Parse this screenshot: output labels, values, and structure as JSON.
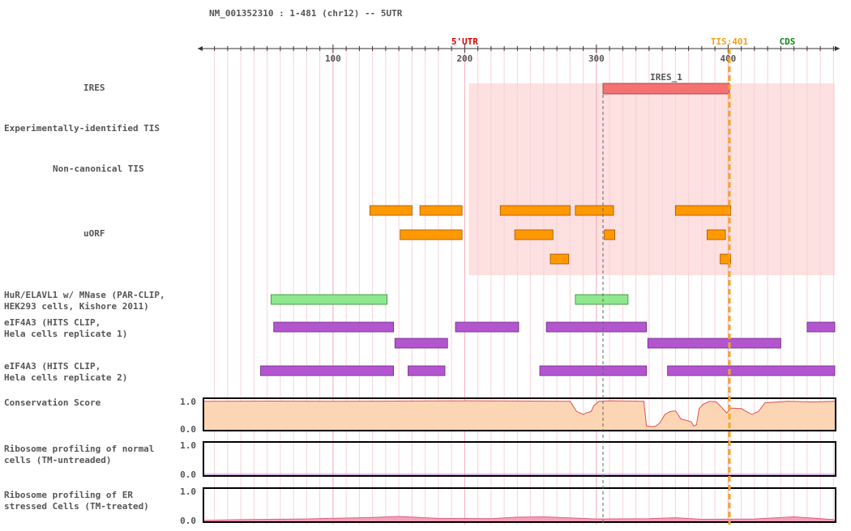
{
  "header": {
    "title": "NM_001352310 : 1-481 (chr12) -- 5UTR"
  },
  "axis": {
    "min": 1,
    "max": 481,
    "major_ticks": [
      100,
      200,
      300,
      400
    ],
    "minor_step": 10,
    "region_labels": [
      {
        "text": "5'UTR",
        "pos": 200,
        "color": "#dd0000"
      },
      {
        "text": "TIS:401",
        "pos": 401,
        "color": "#f0a020"
      },
      {
        "text": "CDS",
        "pos": 445,
        "color": "#118811"
      }
    ]
  },
  "tis_marker": {
    "pos": 401,
    "color": "#f5a623"
  },
  "dashed_marker": {
    "pos": 305
  },
  "highlight_region": {
    "start": 203,
    "end": 481,
    "color": "#fde0e0"
  },
  "tracks": {
    "ires": {
      "label": "IRES",
      "features": [
        {
          "name": "IRES_1",
          "start": 305,
          "end": 401
        }
      ],
      "color": "#f47272"
    },
    "exp_tis": {
      "label": "Experimentally-identified TIS"
    },
    "noncanonical_tis": {
      "label": "Non-canonical TIS"
    },
    "uorf": {
      "label": "uORF",
      "color": "#ff9900",
      "features": [
        {
          "start": 128,
          "end": 160,
          "row": 0
        },
        {
          "start": 166,
          "end": 198,
          "row": 0
        },
        {
          "start": 227,
          "end": 280,
          "row": 0
        },
        {
          "start": 284,
          "end": 313,
          "row": 0
        },
        {
          "start": 360,
          "end": 402,
          "row": 0
        },
        {
          "start": 151,
          "end": 198,
          "row": 1
        },
        {
          "start": 238,
          "end": 267,
          "row": 1
        },
        {
          "start": 306,
          "end": 314,
          "row": 1
        },
        {
          "start": 384,
          "end": 398,
          "row": 1
        },
        {
          "start": 265,
          "end": 279,
          "row": 2
        },
        {
          "start": 394,
          "end": 402,
          "row": 2
        }
      ]
    },
    "hur": {
      "label": "HuR/ELAVL1 w/ MNase (PAR-CLIP,\nHEK293 cells, Kishore 2011)",
      "color": "#8ee88e",
      "features": [
        {
          "start": 53,
          "end": 141
        },
        {
          "start": 284,
          "end": 324
        }
      ]
    },
    "eif4a3_r1": {
      "label": "eIF4A3 (HITS CLIP,\nHela cells replicate 1)",
      "color": "#b455d0",
      "features": [
        {
          "start": 55,
          "end": 146,
          "row": 0
        },
        {
          "start": 193,
          "end": 241,
          "row": 0
        },
        {
          "start": 262,
          "end": 338,
          "row": 0
        },
        {
          "start": 460,
          "end": 481,
          "row": 0
        },
        {
          "start": 147,
          "end": 187,
          "row": 1
        },
        {
          "start": 339,
          "end": 440,
          "row": 1
        }
      ]
    },
    "eif4a3_r2": {
      "label": "eIF4A3 (HITS CLIP,\nHela cells replicate 2)",
      "color": "#b455d0",
      "features": [
        {
          "start": 45,
          "end": 146
        },
        {
          "start": 157,
          "end": 185
        },
        {
          "start": 257,
          "end": 338
        },
        {
          "start": 354,
          "end": 481
        }
      ]
    },
    "conservation": {
      "label": "Conservation Score",
      "ymax_label": "1.0",
      "ymin_label": "0.0",
      "fill": "#fcd6b4",
      "line": "#e05050",
      "values": [
        [
          1,
          0.95
        ],
        [
          50,
          0.96
        ],
        [
          100,
          0.95
        ],
        [
          150,
          0.96
        ],
        [
          200,
          0.97
        ],
        [
          250,
          0.96
        ],
        [
          280,
          0.95
        ],
        [
          285,
          0.6
        ],
        [
          290,
          0.5
        ],
        [
          292,
          0.55
        ],
        [
          296,
          0.6
        ],
        [
          298,
          0.8
        ],
        [
          302,
          0.95
        ],
        [
          310,
          0.97
        ],
        [
          336,
          0.95
        ],
        [
          338,
          0.1
        ],
        [
          342,
          0.08
        ],
        [
          345,
          0.1
        ],
        [
          348,
          0.2
        ],
        [
          352,
          0.5
        ],
        [
          356,
          0.6
        ],
        [
          360,
          0.62
        ],
        [
          362,
          0.5
        ],
        [
          364,
          0.35
        ],
        [
          368,
          0.3
        ],
        [
          372,
          0.25
        ],
        [
          374,
          0.1
        ],
        [
          376,
          0.15
        ],
        [
          378,
          0.7
        ],
        [
          381,
          0.85
        ],
        [
          386,
          0.95
        ],
        [
          391,
          0.93
        ],
        [
          396,
          0.7
        ],
        [
          399,
          0.55
        ],
        [
          402,
          0.72
        ],
        [
          410,
          0.7
        ],
        [
          418,
          0.5
        ],
        [
          423,
          0.6
        ],
        [
          428,
          0.9
        ],
        [
          445,
          0.95
        ],
        [
          465,
          0.93
        ],
        [
          481,
          0.95
        ]
      ]
    },
    "ribo_normal": {
      "label": "Ribosome profiling of normal\ncells (TM-untreaded)",
      "ymax_label": "1.0",
      "ymin_label": "0.0",
      "line": "#b070d0",
      "values": [
        [
          1,
          0.0
        ],
        [
          481,
          0.0
        ]
      ]
    },
    "ribo_er": {
      "label": "Ribosome profiling of ER\nstressed Cells (TM-treated)",
      "ymax_label": "1.0",
      "ymin_label": "0.0",
      "line": "#e06080",
      "fill": "#f4a0b8",
      "values": [
        [
          1,
          0.0
        ],
        [
          30,
          0.03
        ],
        [
          80,
          0.05
        ],
        [
          130,
          0.1
        ],
        [
          150,
          0.13
        ],
        [
          180,
          0.07
        ],
        [
          220,
          0.06
        ],
        [
          240,
          0.11
        ],
        [
          260,
          0.12
        ],
        [
          300,
          0.05
        ],
        [
          340,
          0.06
        ],
        [
          360,
          0.09
        ],
        [
          380,
          0.04
        ],
        [
          420,
          0.05
        ],
        [
          450,
          0.12
        ],
        [
          480,
          0.03
        ],
        [
          481,
          0.0
        ]
      ]
    }
  }
}
